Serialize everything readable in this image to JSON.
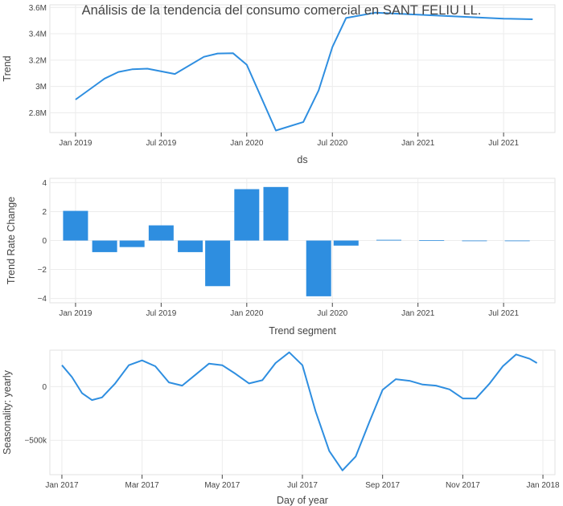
{
  "title": "Análisis de la tendencia del consumo comercial en SANT FELIU LL.",
  "colors": {
    "line": "#2e8ee0",
    "bar": "#2e8ee0",
    "grid": "#ececec",
    "text": "#444444"
  },
  "chart_data": [
    {
      "type": "line",
      "xlabel": "ds",
      "ylabel": "Trend",
      "x_ticks": [
        "Jan 2019",
        "Jul 2019",
        "Jan 2020",
        "Jul 2020",
        "Jan 2021",
        "Jul 2021"
      ],
      "y_ticks": [
        "2.8M",
        "3M",
        "3.2M",
        "3.4M",
        "3.6M"
      ],
      "grid": true,
      "xlim": [
        -0.15,
        2.8
      ],
      "ylim": [
        2.65,
        3.62
      ],
      "points": [
        [
          0.0,
          2.9
        ],
        [
          0.17,
          3.06
        ],
        [
          0.25,
          3.11
        ],
        [
          0.33,
          3.13
        ],
        [
          0.42,
          3.135
        ],
        [
          0.58,
          3.095
        ],
        [
          0.75,
          3.225
        ],
        [
          0.83,
          3.25
        ],
        [
          0.92,
          3.252
        ],
        [
          1.0,
          3.165
        ],
        [
          1.17,
          2.665
        ],
        [
          1.33,
          2.73
        ],
        [
          1.42,
          2.97
        ],
        [
          1.5,
          3.3
        ],
        [
          1.58,
          3.52
        ],
        [
          1.75,
          3.56
        ],
        [
          2.0,
          3.545
        ],
        [
          2.25,
          3.53
        ],
        [
          2.5,
          3.515
        ],
        [
          2.67,
          3.51
        ]
      ]
    },
    {
      "type": "bar",
      "xlabel": "Trend segment",
      "ylabel": "Trend Rate Change",
      "x_ticks": [
        "Jan 2019",
        "Jul 2019",
        "Jan 2020",
        "Jul 2020",
        "Jan 2021",
        "Jul 2021"
      ],
      "y_ticks": [
        "−4",
        "−2",
        "0",
        "2",
        "4"
      ],
      "grid": true,
      "xlim": [
        -0.15,
        2.8
      ],
      "ylim": [
        -4.3,
        4.3
      ],
      "bars": [
        {
          "x": 0.0,
          "value": 2.05
        },
        {
          "x": 0.17,
          "value": -0.8
        },
        {
          "x": 0.33,
          "value": -0.45
        },
        {
          "x": 0.5,
          "value": 1.05
        },
        {
          "x": 0.67,
          "value": -0.8
        },
        {
          "x": 0.83,
          "value": -3.15
        },
        {
          "x": 1.0,
          "value": 3.55
        },
        {
          "x": 1.17,
          "value": 3.7
        },
        {
          "x": 1.42,
          "value": -3.85
        },
        {
          "x": 1.58,
          "value": -0.35
        },
        {
          "x": 1.83,
          "value": 0.05
        },
        {
          "x": 2.08,
          "value": 0.02
        },
        {
          "x": 2.33,
          "value": -0.02
        },
        {
          "x": 2.58,
          "value": -0.03
        }
      ]
    },
    {
      "type": "line",
      "xlabel": "Day of year",
      "ylabel": "Seasonality: yearly",
      "x_ticks": [
        "Jan 2017",
        "Mar 2017",
        "May 2017",
        "Jul 2017",
        "Sep 2017",
        "Nov 2017",
        "Jan 2018"
      ],
      "y_ticks": [
        "−500k",
        "0"
      ],
      "grid": true,
      "xlim": [
        -0.3,
        12.3
      ],
      "ylim": [
        -820000,
        340000
      ],
      "points": [
        [
          0.0,
          200000
        ],
        [
          0.25,
          90000
        ],
        [
          0.5,
          -60000
        ],
        [
          0.75,
          -125000
        ],
        [
          1.0,
          -100000
        ],
        [
          1.33,
          30000
        ],
        [
          1.67,
          200000
        ],
        [
          2.0,
          245000
        ],
        [
          2.33,
          190000
        ],
        [
          2.67,
          40000
        ],
        [
          3.0,
          10000
        ],
        [
          3.33,
          110000
        ],
        [
          3.67,
          215000
        ],
        [
          4.0,
          200000
        ],
        [
          4.33,
          120000
        ],
        [
          4.67,
          30000
        ],
        [
          5.0,
          60000
        ],
        [
          5.33,
          220000
        ],
        [
          5.67,
          320000
        ],
        [
          6.0,
          200000
        ],
        [
          6.33,
          -230000
        ],
        [
          6.67,
          -600000
        ],
        [
          7.0,
          -780000
        ],
        [
          7.33,
          -650000
        ],
        [
          7.67,
          -330000
        ],
        [
          8.0,
          -30000
        ],
        [
          8.33,
          70000
        ],
        [
          8.67,
          55000
        ],
        [
          9.0,
          20000
        ],
        [
          9.33,
          10000
        ],
        [
          9.67,
          -25000
        ],
        [
          10.0,
          -110000
        ],
        [
          10.33,
          -110000
        ],
        [
          10.67,
          30000
        ],
        [
          11.0,
          190000
        ],
        [
          11.33,
          300000
        ],
        [
          11.67,
          260000
        ],
        [
          11.85,
          220000
        ]
      ]
    }
  ]
}
